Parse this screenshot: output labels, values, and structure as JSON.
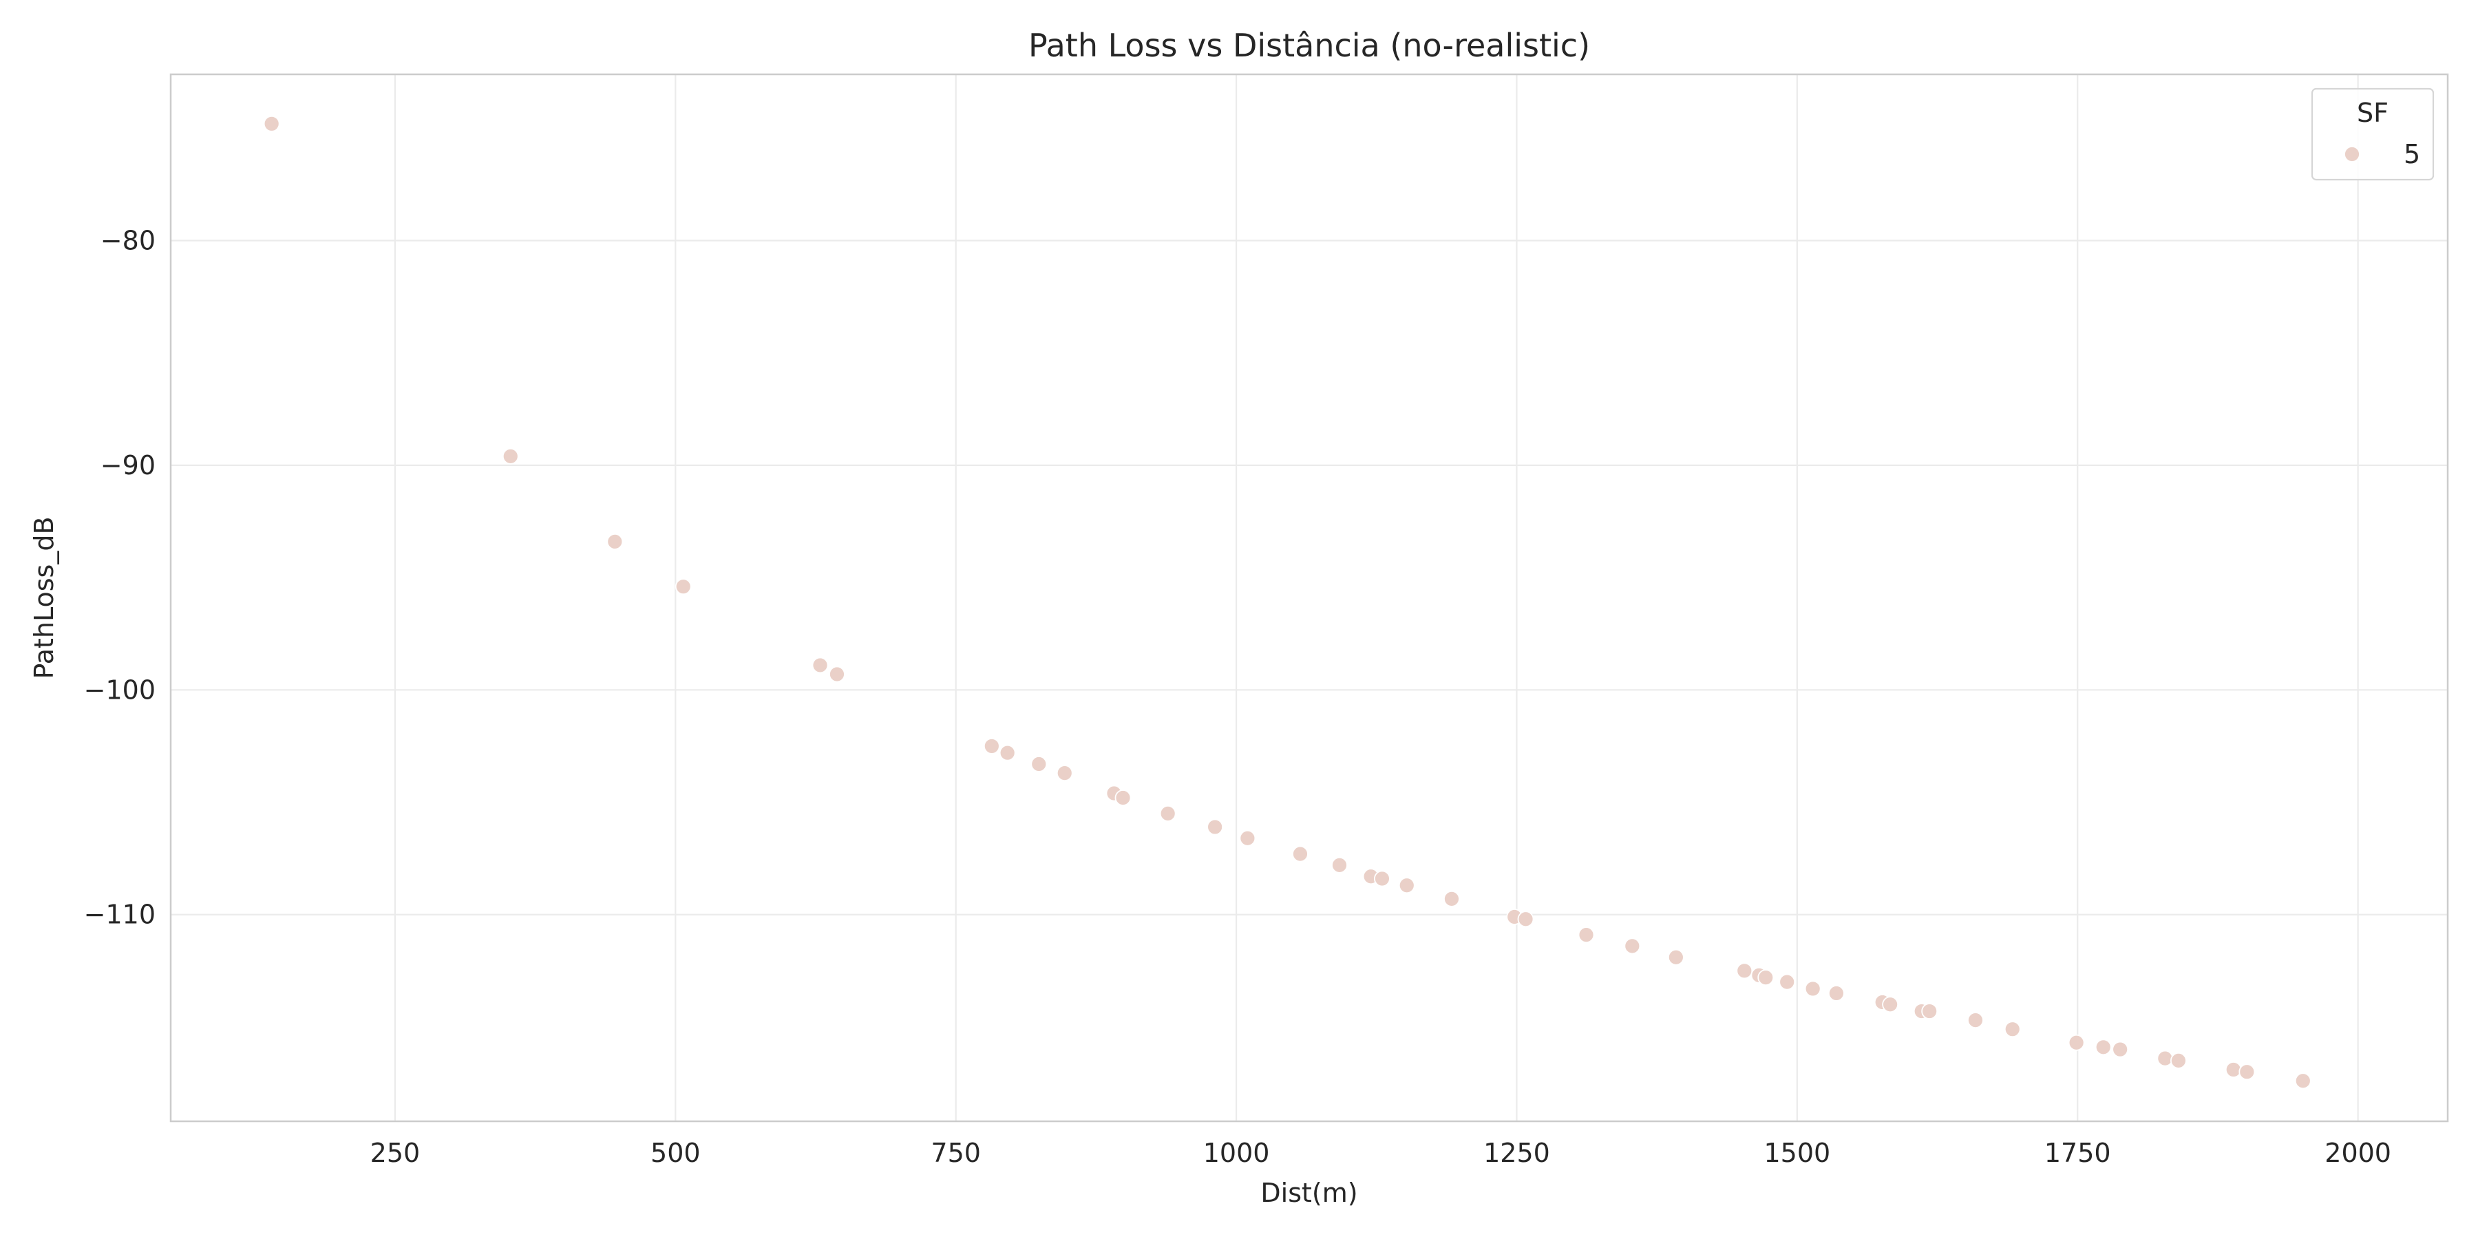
{
  "chart_data": {
    "type": "scatter",
    "title": "Path Loss vs Distância (no-realistic)",
    "xlabel": "Dist(m)",
    "ylabel": "PathLoss_dB",
    "xlim": [
      50,
      2080
    ],
    "ylim": [
      -119.2,
      -72.6
    ],
    "xticks": [
      250,
      500,
      750,
      1000,
      1250,
      1500,
      1750,
      2000
    ],
    "yticks": [
      -80,
      -90,
      -100,
      -110
    ],
    "grid": true,
    "legend": {
      "title": "SF",
      "placement": "top-right",
      "entries": [
        {
          "label": "5",
          "color": "#ead0c8"
        }
      ]
    },
    "series": [
      {
        "name": "5",
        "color": "#ead0c8",
        "points": [
          [
            140,
            -74.8
          ],
          [
            353,
            -89.6
          ],
          [
            446,
            -93.4
          ],
          [
            507,
            -95.4
          ],
          [
            629,
            -98.9
          ],
          [
            644,
            -99.3
          ],
          [
            782,
            -102.5
          ],
          [
            796,
            -102.8
          ],
          [
            824,
            -103.3
          ],
          [
            847,
            -103.7
          ],
          [
            891,
            -104.6
          ],
          [
            899,
            -104.8
          ],
          [
            939,
            -105.5
          ],
          [
            981,
            -106.1
          ],
          [
            1010,
            -106.6
          ],
          [
            1057,
            -107.3
          ],
          [
            1092,
            -107.8
          ],
          [
            1120,
            -108.3
          ],
          [
            1130,
            -108.4
          ],
          [
            1152,
            -108.7
          ],
          [
            1192,
            -109.3
          ],
          [
            1248,
            -110.1
          ],
          [
            1258,
            -110.2
          ],
          [
            1312,
            -110.9
          ],
          [
            1353,
            -111.4
          ],
          [
            1392,
            -111.9
          ],
          [
            1453,
            -112.5
          ],
          [
            1466,
            -112.7
          ],
          [
            1472,
            -112.8
          ],
          [
            1491,
            -113.0
          ],
          [
            1514,
            -113.3
          ],
          [
            1535,
            -113.5
          ],
          [
            1576,
            -113.9
          ],
          [
            1583,
            -114.0
          ],
          [
            1611,
            -114.3
          ],
          [
            1618,
            -114.3
          ],
          [
            1659,
            -114.7
          ],
          [
            1692,
            -115.1
          ],
          [
            1749,
            -115.7
          ],
          [
            1773,
            -115.9
          ],
          [
            1788,
            -116.0
          ],
          [
            1828,
            -116.4
          ],
          [
            1840,
            -116.5
          ],
          [
            1889,
            -116.9
          ],
          [
            1901,
            -117.0
          ],
          [
            1951,
            -117.4
          ]
        ]
      }
    ]
  }
}
